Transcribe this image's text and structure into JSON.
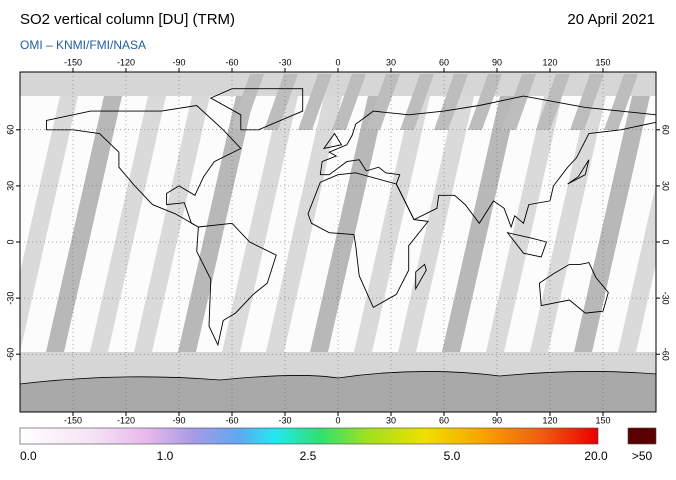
{
  "header": {
    "title": "SO2 vertical column [DU] (TRM)",
    "date": "20 April 2021",
    "source": "OMI  –  KNMI/FMI/NASA"
  },
  "map": {
    "lon_ticks": [
      -150,
      -120,
      -90,
      -60,
      -30,
      0,
      30,
      60,
      90,
      120,
      150
    ],
    "lat_ticks": [
      60,
      30,
      0,
      -30,
      -60
    ]
  },
  "colorbar": {
    "labels": [
      "0.0",
      "1.0",
      "2.5",
      "5.0",
      "20.0"
    ],
    "over_label": ">50"
  }
}
